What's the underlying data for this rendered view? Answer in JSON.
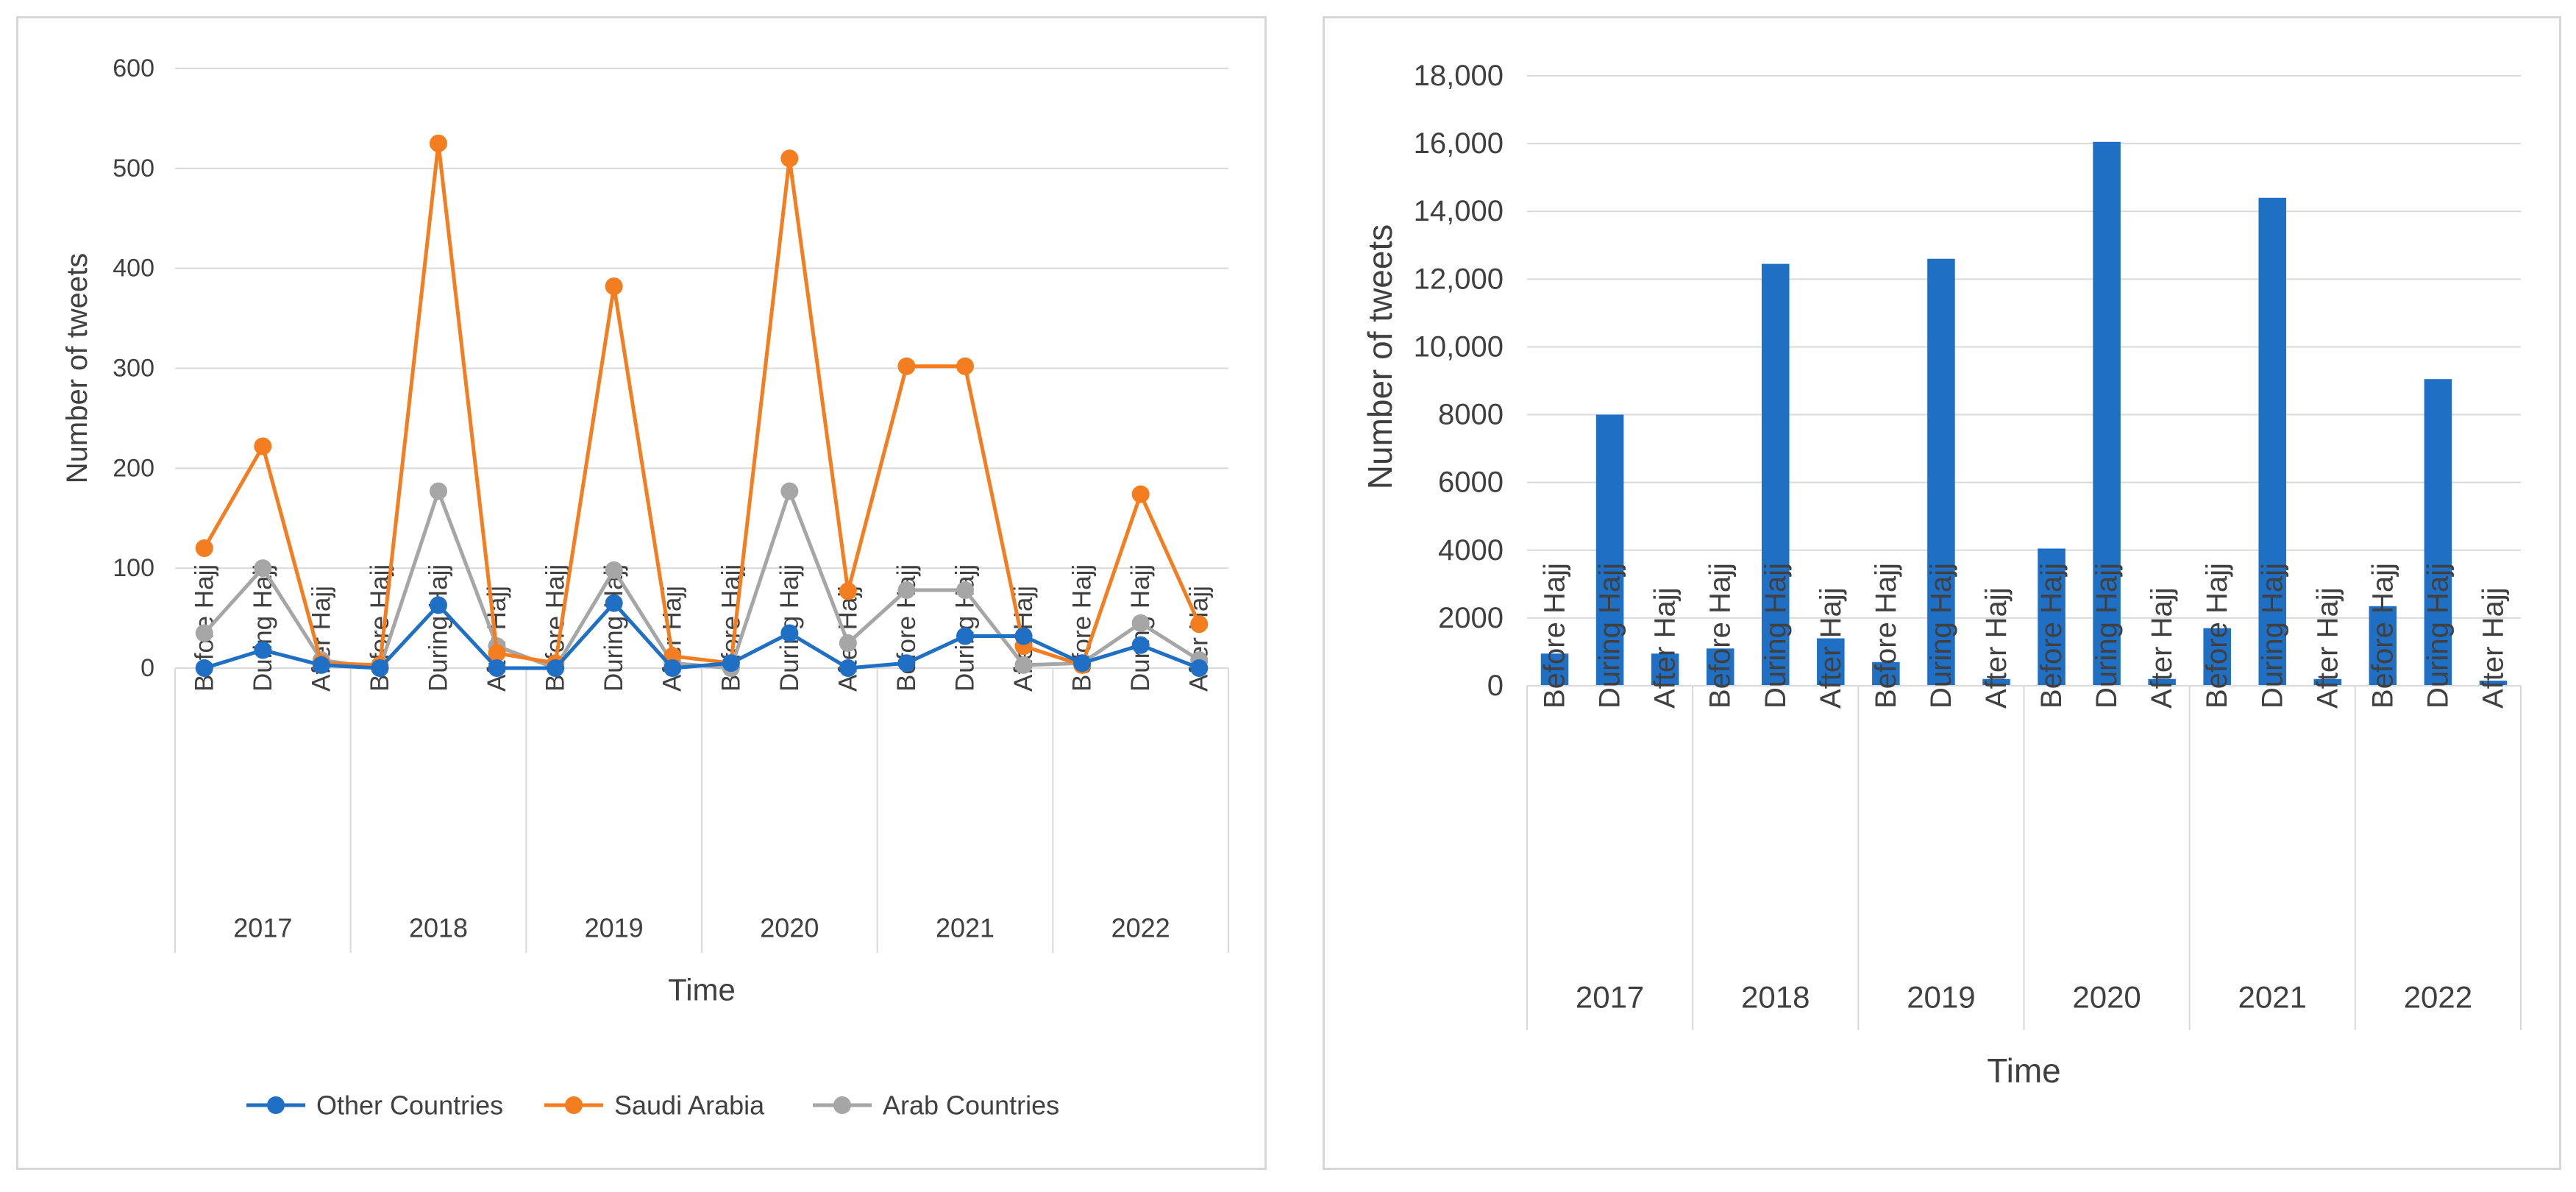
{
  "periods": [
    "Before Hajj",
    "During Hajj",
    "After Hajj"
  ],
  "years": [
    "2017",
    "2018",
    "2019",
    "2020",
    "2021",
    "2022"
  ],
  "chart_data": [
    {
      "type": "line",
      "xlabel": "Time",
      "ylabel": "Number of tweets",
      "ylim": [
        0,
        600
      ],
      "yticks": [
        "0",
        "100",
        "200",
        "300",
        "400",
        "500",
        "600"
      ],
      "grid": true,
      "legend_position": "bottom",
      "series": [
        {
          "name": "Other Countries",
          "color": "#1f6fc5",
          "values": [
            0,
            18,
            3,
            0,
            63,
            0,
            0,
            65,
            0,
            5,
            35,
            0,
            5,
            32,
            32,
            5,
            23,
            0
          ]
        },
        {
          "name": "Saudi Arabia",
          "color": "#f47d20",
          "values": [
            120,
            222,
            5,
            3,
            525,
            15,
            5,
            382,
            12,
            5,
            510,
            77,
            302,
            302,
            22,
            3,
            174,
            44
          ]
        },
        {
          "name": "Arab Countries",
          "color": "#a6a6a6",
          "values": [
            35,
            100,
            8,
            0,
            177,
            22,
            0,
            98,
            5,
            0,
            177,
            25,
            78,
            78,
            3,
            5,
            45,
            8
          ]
        }
      ]
    },
    {
      "type": "bar",
      "xlabel": "Time",
      "ylabel": "Number of tweets",
      "ylim": [
        0,
        18000
      ],
      "yticks": [
        "0",
        "2000",
        "4000",
        "6000",
        "8000",
        "10,000",
        "12,000",
        "14,000",
        "16,000",
        "18,000"
      ],
      "grid": true,
      "color": "#1f6fc5",
      "values": [
        950,
        8000,
        950,
        1100,
        12450,
        1400,
        700,
        12600,
        200,
        4050,
        16050,
        200,
        1700,
        14400,
        200,
        2350,
        9050,
        150
      ]
    }
  ]
}
